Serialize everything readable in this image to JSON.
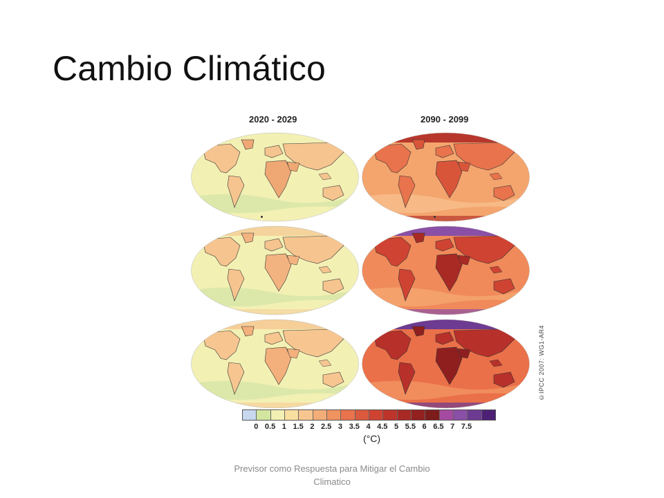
{
  "slide": {
    "title": "Cambio Climático",
    "footer": "Previsor como Respuesta para Mitigar el Cambio Climatico"
  },
  "figure": {
    "columns": [
      "2020 - 2029",
      "2090 - 2099"
    ],
    "copyright": "©IPCC 2007: WG1-AR4",
    "maps": [
      {
        "row": 0,
        "col": 0,
        "base": "#f3f0b4",
        "land": "#f6c48f",
        "hot": "#efa874",
        "polar": "#f3f0b4",
        "cool": "#d6e6a6"
      },
      {
        "row": 0,
        "col": 1,
        "base": "#f4a56e",
        "land": "#e8734c",
        "hot": "#d9553a",
        "polar": "#b8372c",
        "cool": "#f7bf8c"
      },
      {
        "row": 1,
        "col": 0,
        "base": "#f3f0b4",
        "land": "#f6c48f",
        "hot": "#f3b380",
        "polar": "#f5d39c",
        "cool": "#d6e6a6"
      },
      {
        "row": 1,
        "col": 1,
        "base": "#f08a5a",
        "land": "#cf4332",
        "hot": "#a92a24",
        "polar": "#8a4fa6",
        "cool": "#f5a670"
      },
      {
        "row": 2,
        "col": 0,
        "base": "#f3f0b4",
        "land": "#f7c690",
        "hot": "#f3b07c",
        "polar": "#f6cf98",
        "cool": "#d6e6a6"
      },
      {
        "row": 2,
        "col": 1,
        "base": "#ea7049",
        "land": "#b8302a",
        "hot": "#8f1f1f",
        "polar": "#6d3b92",
        "cool": "#f39562"
      }
    ],
    "legend": {
      "unit": "(°C)",
      "colors": [
        "#c7d7ee",
        "#d2e6a0",
        "#f3f0b4",
        "#f9df9f",
        "#f7c690",
        "#f3ad78",
        "#ef9360",
        "#e8734c",
        "#db5a3d",
        "#cf4332",
        "#bd342b",
        "#a92a24",
        "#92211f",
        "#7c1d1b",
        "#a44aa0",
        "#8a4fa6",
        "#6d3b92",
        "#4d2076"
      ],
      "ticks": [
        "0",
        "0.5",
        "1",
        "1.5",
        "2",
        "2.5",
        "3",
        "3.5",
        "4",
        "4.5",
        "5",
        "5.5",
        "6",
        "6.5",
        "7",
        "7.5"
      ]
    }
  }
}
